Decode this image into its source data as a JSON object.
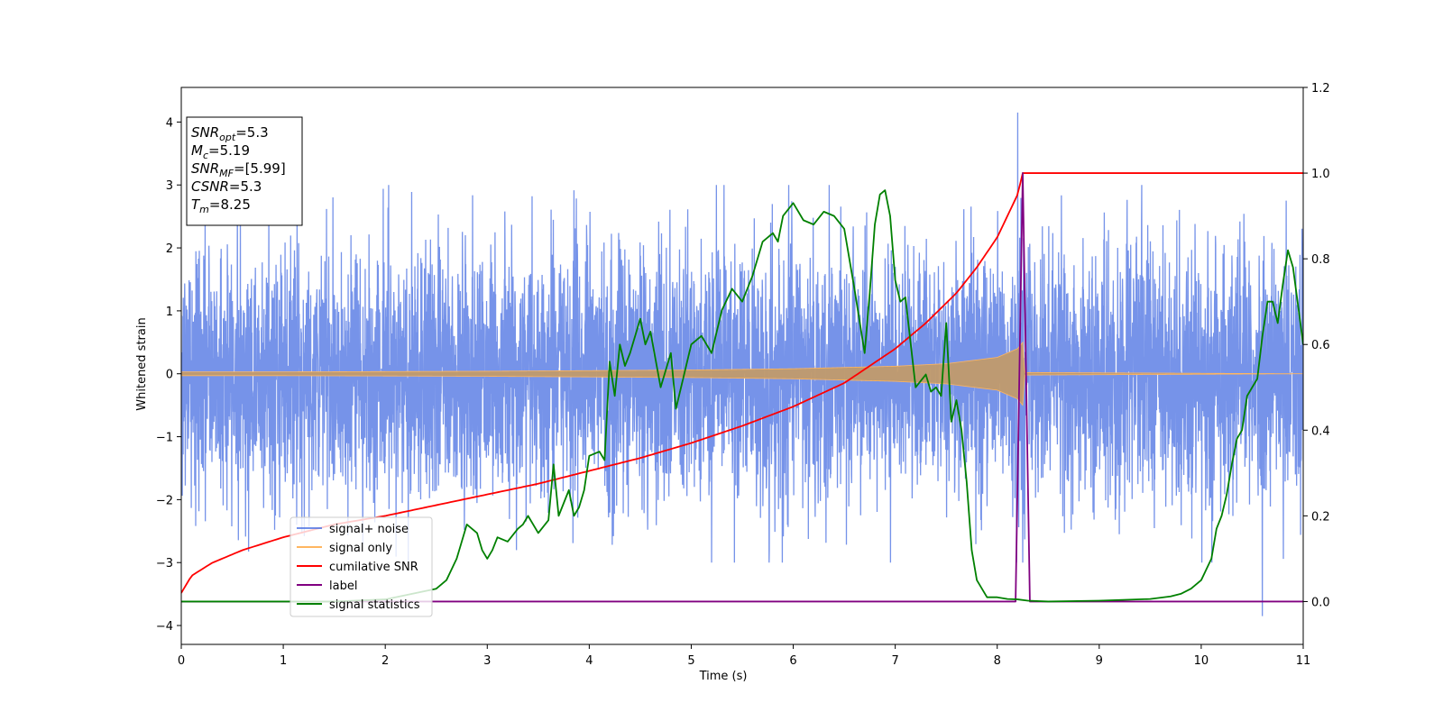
{
  "chart_data": {
    "type": "line",
    "xlabel": "Time (s)",
    "ylabel": "Whitened strain",
    "xlim": [
      0,
      11
    ],
    "ylim": [
      -4.3,
      4.55
    ],
    "y2lim": [
      -0.1,
      1.2
    ],
    "xticks": [
      0,
      1,
      2,
      3,
      4,
      5,
      6,
      7,
      8,
      9,
      10,
      11
    ],
    "yticks": [
      -4,
      -3,
      -2,
      -1,
      0,
      1,
      2,
      3,
      4
    ],
    "y2ticks": [
      "0.0",
      "0.2",
      "0.4",
      "0.6",
      "0.8",
      "1.0",
      "1.2"
    ],
    "grid": false,
    "legend_position": "lower-left",
    "annotation": {
      "lines": [
        {
          "base": "SNR",
          "sub": "opt",
          "value": "=5.3"
        },
        {
          "base": "M",
          "sub": "c",
          "value": "=5.19"
        },
        {
          "base": "SNR",
          "sub": "MF",
          "value": "=[5.99]"
        },
        {
          "base": "CSNR",
          "sub": "",
          "value": "=5.3"
        },
        {
          "base": "T",
          "sub": "m",
          "value": "=8.25"
        }
      ]
    },
    "series": [
      {
        "name": "signal+ noise",
        "color": "#4169e1",
        "axis": "left",
        "noise_sigma": 1.0,
        "typical_peak": 3.0,
        "max_value": 4.15,
        "max_at": 8.2,
        "min_value": -3.85,
        "min_at": 10.6
      },
      {
        "name": "signal only",
        "color": "#ffb660",
        "axis": "left",
        "envelope": {
          "x": [
            0,
            1,
            2,
            3,
            4,
            5,
            6,
            7,
            7.5,
            8.0,
            8.2,
            8.25,
            8.27,
            11
          ],
          "amp": [
            0.03,
            0.03,
            0.035,
            0.04,
            0.05,
            0.06,
            0.08,
            0.12,
            0.16,
            0.26,
            0.4,
            0.5,
            0.02,
            0.0
          ]
        }
      },
      {
        "name": "cumilative SNR",
        "color": "#ff0000",
        "axis": "right",
        "x": [
          0,
          0.1,
          0.3,
          0.6,
          1,
          1.5,
          2,
          2.5,
          3,
          3.5,
          4,
          4.5,
          5,
          5.5,
          6,
          6.5,
          7,
          7.3,
          7.6,
          7.8,
          8.0,
          8.1,
          8.2,
          8.25,
          11
        ],
        "y": [
          0.02,
          0.06,
          0.09,
          0.12,
          0.15,
          0.18,
          0.2,
          0.225,
          0.25,
          0.275,
          0.305,
          0.335,
          0.37,
          0.41,
          0.455,
          0.51,
          0.59,
          0.65,
          0.72,
          0.78,
          0.85,
          0.9,
          0.95,
          1.0,
          1.0
        ]
      },
      {
        "name": "label",
        "color": "#800080",
        "axis": "right",
        "x": [
          0,
          8.18,
          8.25,
          8.32,
          11
        ],
        "y": [
          0,
          0,
          1.0,
          0,
          0
        ]
      },
      {
        "name": "signal statistics",
        "color": "#008000",
        "axis": "right",
        "x": [
          0,
          1,
          1.5,
          2,
          2.3,
          2.5,
          2.6,
          2.7,
          2.8,
          2.9,
          2.95,
          3.0,
          3.05,
          3.1,
          3.2,
          3.3,
          3.35,
          3.4,
          3.5,
          3.6,
          3.65,
          3.7,
          3.75,
          3.8,
          3.85,
          3.9,
          3.95,
          4.0,
          4.1,
          4.15,
          4.2,
          4.25,
          4.3,
          4.35,
          4.4,
          4.5,
          4.55,
          4.6,
          4.7,
          4.8,
          4.85,
          4.9,
          5.0,
          5.1,
          5.2,
          5.3,
          5.4,
          5.5,
          5.6,
          5.7,
          5.8,
          5.85,
          5.9,
          6.0,
          6.1,
          6.2,
          6.3,
          6.4,
          6.5,
          6.6,
          6.7,
          6.75,
          6.8,
          6.85,
          6.9,
          6.95,
          7.0,
          7.05,
          7.1,
          7.2,
          7.3,
          7.35,
          7.4,
          7.45,
          7.5,
          7.55,
          7.6,
          7.65,
          7.7,
          7.75,
          7.8,
          7.9,
          8.0,
          8.1,
          8.2,
          8.3,
          8.5,
          9.0,
          9.5,
          9.7,
          9.8,
          9.9,
          10.0,
          10.1,
          10.15,
          10.2,
          10.25,
          10.3,
          10.35,
          10.4,
          10.45,
          10.5,
          10.55,
          10.6,
          10.65,
          10.7,
          10.75,
          10.8,
          10.85,
          10.9,
          10.95,
          11.0
        ],
        "y": [
          0,
          0,
          0,
          0.005,
          0.02,
          0.03,
          0.05,
          0.1,
          0.18,
          0.16,
          0.12,
          0.1,
          0.12,
          0.15,
          0.14,
          0.17,
          0.18,
          0.2,
          0.16,
          0.19,
          0.32,
          0.2,
          0.23,
          0.26,
          0.2,
          0.22,
          0.26,
          0.34,
          0.35,
          0.33,
          0.56,
          0.48,
          0.6,
          0.55,
          0.58,
          0.66,
          0.6,
          0.63,
          0.5,
          0.58,
          0.45,
          0.5,
          0.6,
          0.62,
          0.58,
          0.68,
          0.73,
          0.7,
          0.76,
          0.84,
          0.86,
          0.84,
          0.9,
          0.93,
          0.89,
          0.88,
          0.91,
          0.9,
          0.87,
          0.73,
          0.58,
          0.72,
          0.88,
          0.95,
          0.96,
          0.9,
          0.75,
          0.7,
          0.71,
          0.5,
          0.53,
          0.49,
          0.5,
          0.48,
          0.65,
          0.42,
          0.47,
          0.4,
          0.28,
          0.12,
          0.05,
          0.01,
          0.01,
          0.006,
          0.005,
          0.002,
          0.0,
          0.002,
          0.006,
          0.012,
          0.018,
          0.03,
          0.05,
          0.1,
          0.17,
          0.2,
          0.25,
          0.32,
          0.38,
          0.4,
          0.48,
          0.5,
          0.52,
          0.62,
          0.7,
          0.7,
          0.65,
          0.74,
          0.82,
          0.78,
          0.69,
          0.6
        ]
      }
    ]
  }
}
